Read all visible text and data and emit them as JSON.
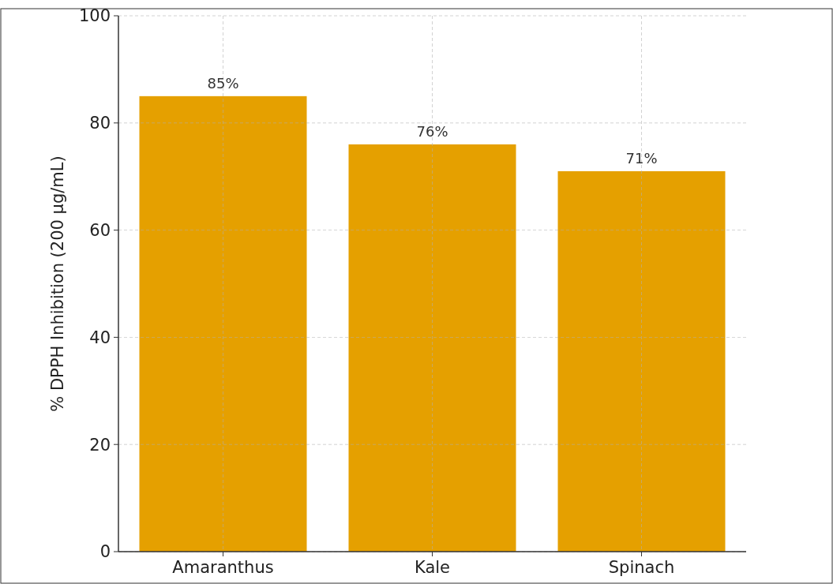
{
  "chart_data": {
    "type": "bar",
    "ylabel": "% DPPH Inhibition (200 µg/mL)",
    "categories": [
      "Amaranthus",
      "Kale",
      "Spinach"
    ],
    "values": [
      85,
      76,
      71
    ],
    "value_labels": [
      "85%",
      "76%",
      "71%"
    ],
    "color": "#e5a000",
    "ylim": [
      0,
      100
    ],
    "yticks": [
      0,
      20,
      40,
      60,
      80,
      100
    ],
    "grid": true
  }
}
